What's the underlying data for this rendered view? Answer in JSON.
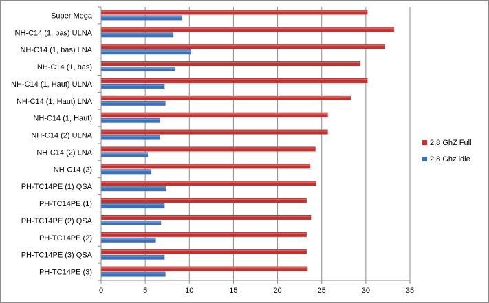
{
  "chart_data": {
    "type": "bar",
    "orientation": "horizontal",
    "categories": [
      "Super Mega",
      "NH-C14 (1, bas) ULNA",
      "NH-C14 (1, bas) LNA",
      "NH-C14 (1, bas)",
      "NH-C14 (1, Haut) ULNA",
      "NH-C14 (1, Haut) LNA",
      "NH-C14 (1, Haut)",
      "NH-C14 (2) ULNA",
      "NH-C14 (2) LNA",
      "NH-C14 (2)",
      "PH-TC14PE (1) QSA",
      "PH-TC14PE (1)",
      "PH-TC14PE (2) QSA",
      "PH-TC14PE (2)",
      "PH-TC14PE (3) QSA",
      "PH-TC14PE (3)"
    ],
    "series": [
      {
        "name": "2,8 GhZ Full",
        "color": "#c0312f",
        "values": [
          30.2,
          33.2,
          32.2,
          29.4,
          30.2,
          28.3,
          25.7,
          25.7,
          24.3,
          23.7,
          24.4,
          23.3,
          23.8,
          23.3,
          23.3,
          23.4
        ]
      },
      {
        "name": "2,8 Ghz idle",
        "color": "#3d6fb6",
        "values": [
          9.2,
          8.2,
          10.2,
          8.4,
          7.2,
          7.3,
          6.7,
          6.7,
          5.3,
          5.7,
          7.4,
          7.2,
          6.8,
          6.2,
          7.2,
          7.3
        ]
      }
    ],
    "xticks": [
      "0",
      "5",
      "10",
      "15",
      "20",
      "25",
      "30",
      "35"
    ],
    "xlim": [
      0,
      35
    ],
    "title": "",
    "xlabel": "",
    "ylabel": "",
    "grid": true,
    "legend_position": "right"
  }
}
